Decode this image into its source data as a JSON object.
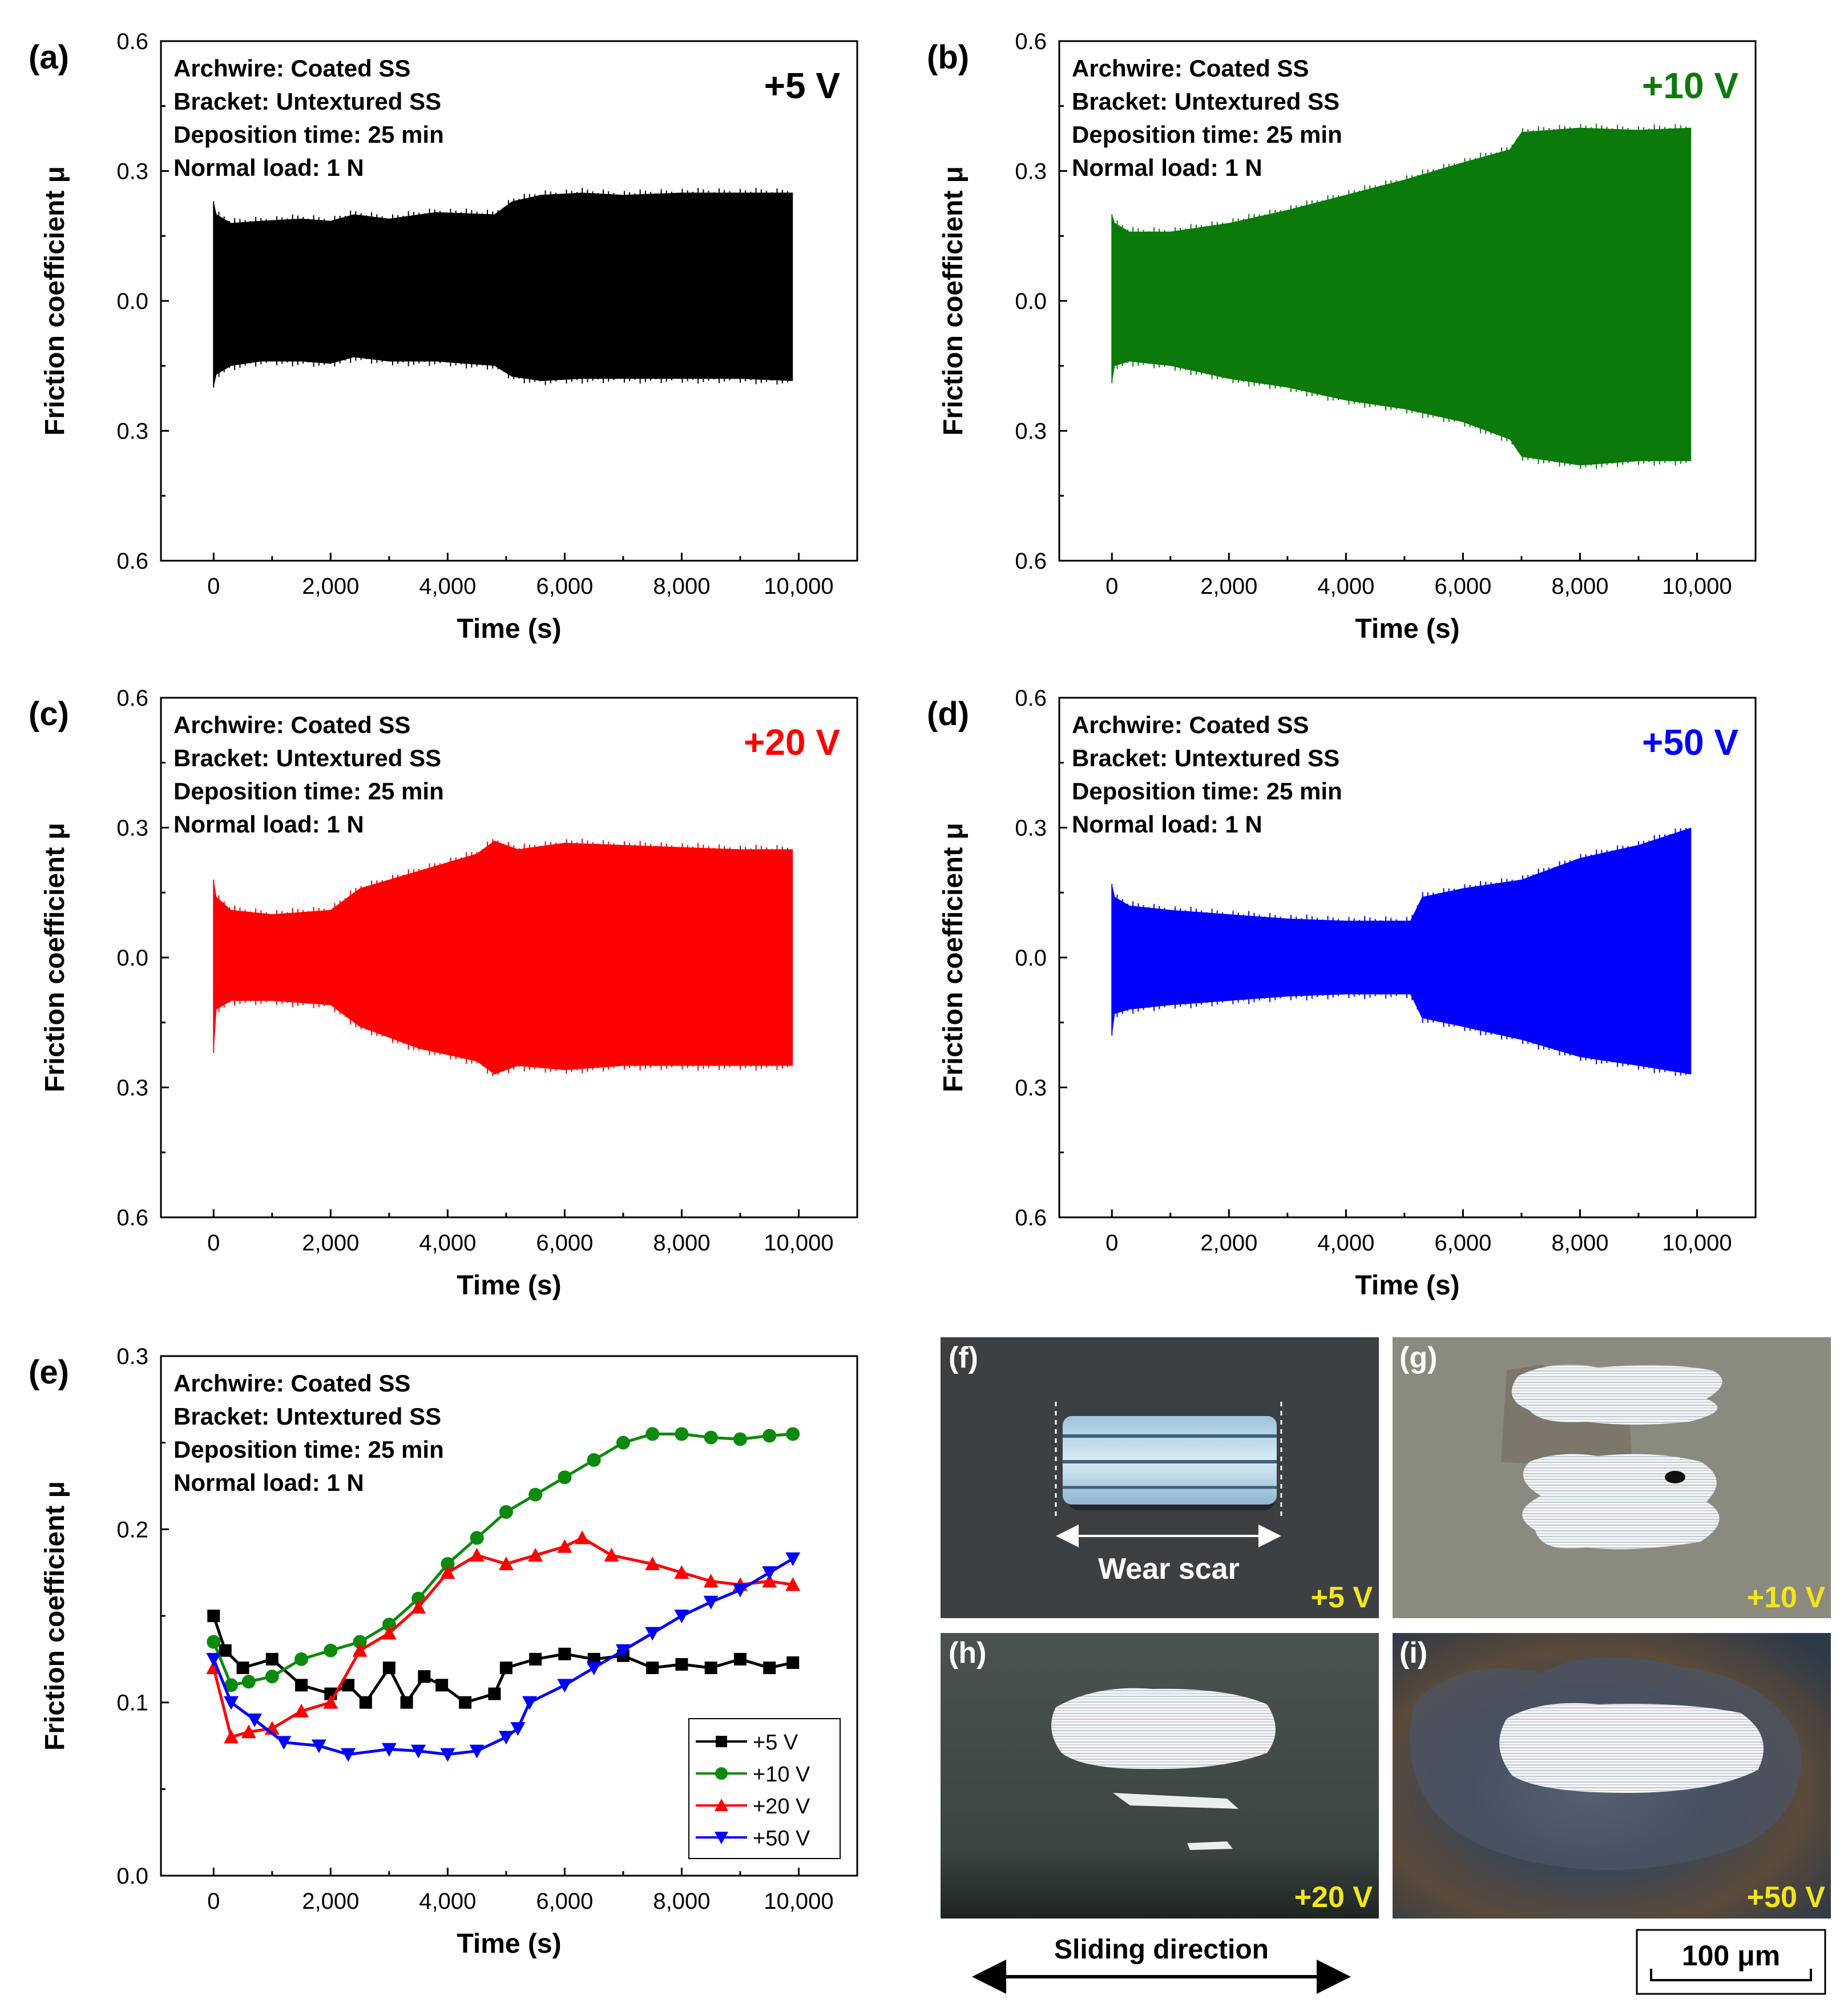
{
  "chart_data": [
    {
      "panel": "(a)",
      "type": "area",
      "tag": "+5 V",
      "color": "#000000",
      "info": [
        "Archwire: Coated SS",
        "Bracket: Untextured SS",
        "Deposition time: 25 min",
        "Normal load: 1 N"
      ],
      "xlabel": "Time (s)",
      "ylabel": "Friction coefficient μ",
      "xlim": [
        -900,
        11000
      ],
      "ylim": [
        -0.6,
        0.6
      ],
      "x_ticks": [
        0,
        2000,
        4000,
        6000,
        8000,
        10000
      ],
      "x_tick_labels": [
        "0",
        "2,000",
        "4,000",
        "6,000",
        "8,000",
        "10,000"
      ],
      "y_ticks": [
        0.6,
        0.3,
        0.0,
        -0.3,
        -0.6
      ],
      "y_tick_labels": [
        "0.6",
        "0.3",
        "0.0",
        "0.3",
        "0.6"
      ],
      "x": [
        0,
        50,
        300,
        800,
        1500,
        2000,
        2400,
        3000,
        3800,
        4800,
        5100,
        5600,
        6300,
        7000,
        8000,
        9000,
        9900
      ],
      "upper": [
        0.23,
        0.2,
        0.18,
        0.185,
        0.19,
        0.185,
        0.2,
        0.19,
        0.205,
        0.2,
        0.23,
        0.245,
        0.25,
        0.245,
        0.25,
        0.25,
        0.25
      ],
      "lower": [
        -0.2,
        -0.17,
        -0.15,
        -0.14,
        -0.14,
        -0.145,
        -0.13,
        -0.14,
        -0.14,
        -0.15,
        -0.175,
        -0.185,
        -0.18,
        -0.18,
        -0.18,
        -0.18,
        -0.185
      ]
    },
    {
      "panel": "(b)",
      "type": "area",
      "tag": "+10 V",
      "color": "#0b7a0b",
      "info": [
        "Archwire: Coated SS",
        "Bracket: Untextured SS",
        "Deposition time: 25 min",
        "Normal load: 1 N"
      ],
      "xlabel": "Time (s)",
      "ylabel": "Friction coefficient μ",
      "xlim": [
        -900,
        11000
      ],
      "ylim": [
        -0.6,
        0.6
      ],
      "x_ticks": [
        0,
        2000,
        4000,
        6000,
        8000,
        10000
      ],
      "x_tick_labels": [
        "0",
        "2,000",
        "4,000",
        "6,000",
        "8,000",
        "10,000"
      ],
      "y_ticks": [
        0.6,
        0.3,
        0.0,
        -0.3,
        -0.6
      ],
      "y_tick_labels": [
        "0.6",
        "0.3",
        "0.0",
        "0.3",
        "0.6"
      ],
      "x": [
        0,
        50,
        300,
        1000,
        2000,
        3000,
        4000,
        5000,
        6000,
        6800,
        7000,
        8000,
        9000,
        9900
      ],
      "upper": [
        0.2,
        0.18,
        0.16,
        0.16,
        0.18,
        0.21,
        0.245,
        0.28,
        0.32,
        0.35,
        0.39,
        0.4,
        0.395,
        0.4
      ],
      "lower": [
        -0.19,
        -0.15,
        -0.14,
        -0.15,
        -0.18,
        -0.2,
        -0.23,
        -0.25,
        -0.28,
        -0.32,
        -0.36,
        -0.38,
        -0.37,
        -0.37
      ]
    },
    {
      "panel": "(c)",
      "type": "area",
      "tag": "+20 V",
      "color": "#ff0000",
      "info": [
        "Archwire: Coated SS",
        "Bracket: Untextured SS",
        "Deposition time: 25 min",
        "Normal load: 1 N"
      ],
      "xlabel": "Time (s)",
      "ylabel": "Friction coefficient μ",
      "xlim": [
        -900,
        11000
      ],
      "ylim": [
        -0.6,
        0.6
      ],
      "x_ticks": [
        0,
        2000,
        4000,
        6000,
        8000,
        10000
      ],
      "x_tick_labels": [
        "0",
        "2,000",
        "4,000",
        "6,000",
        "8,000",
        "10,000"
      ],
      "y_ticks": [
        0.6,
        0.3,
        0.0,
        -0.3,
        -0.6
      ],
      "y_tick_labels": [
        "0.6",
        "0.3",
        "0.0",
        "0.3",
        "0.6"
      ],
      "x": [
        0,
        50,
        300,
        1000,
        2000,
        2500,
        3500,
        4500,
        4800,
        5200,
        6000,
        7000,
        8000,
        9000,
        9900
      ],
      "upper": [
        0.18,
        0.14,
        0.11,
        0.1,
        0.11,
        0.16,
        0.2,
        0.24,
        0.27,
        0.25,
        0.265,
        0.26,
        0.255,
        0.25,
        0.25
      ],
      "lower": [
        -0.22,
        -0.12,
        -0.1,
        -0.1,
        -0.11,
        -0.16,
        -0.21,
        -0.24,
        -0.27,
        -0.25,
        -0.26,
        -0.25,
        -0.25,
        -0.25,
        -0.25
      ]
    },
    {
      "panel": "(d)",
      "type": "area",
      "tag": "+50 V",
      "color": "#0000ff",
      "info": [
        "Archwire: Coated SS",
        "Bracket: Untextured SS",
        "Deposition time: 25 min",
        "Normal load: 1 N"
      ],
      "xlabel": "Time (s)",
      "ylabel": "Friction coefficient μ",
      "xlim": [
        -900,
        11000
      ],
      "ylim": [
        -0.6,
        0.6
      ],
      "x_ticks": [
        0,
        2000,
        4000,
        6000,
        8000,
        10000
      ],
      "x_tick_labels": [
        "0",
        "2,000",
        "4,000",
        "6,000",
        "8,000",
        "10,000"
      ],
      "y_ticks": [
        0.6,
        0.3,
        0.0,
        -0.3,
        -0.6
      ],
      "y_tick_labels": [
        "0.6",
        "0.3",
        "0.0",
        "0.3",
        "0.6"
      ],
      "x": [
        0,
        50,
        300,
        1000,
        2000,
        3000,
        4000,
        5100,
        5300,
        6000,
        7000,
        8000,
        9000,
        9900
      ],
      "upper": [
        0.17,
        0.14,
        0.12,
        0.11,
        0.1,
        0.09,
        0.085,
        0.085,
        0.14,
        0.16,
        0.18,
        0.23,
        0.26,
        0.3
      ],
      "lower": [
        -0.18,
        -0.13,
        -0.12,
        -0.11,
        -0.1,
        -0.09,
        -0.085,
        -0.085,
        -0.14,
        -0.16,
        -0.19,
        -0.23,
        -0.25,
        -0.27
      ]
    },
    {
      "panel": "(e)",
      "type": "line",
      "info": [
        "Archwire: Coated SS",
        "Bracket: Untextured SS",
        "Deposition time: 25 min",
        "Normal load: 1 N"
      ],
      "xlabel": "Time (s)",
      "ylabel": "Friction coefficient μ",
      "xlim": [
        -900,
        11000
      ],
      "ylim": [
        0.0,
        0.3
      ],
      "x_ticks": [
        0,
        2000,
        4000,
        6000,
        8000,
        10000
      ],
      "x_tick_labels": [
        "0",
        "2,000",
        "4,000",
        "6,000",
        "8,000",
        "10,000"
      ],
      "y_ticks": [
        0.0,
        0.1,
        0.2,
        0.3
      ],
      "y_tick_labels": [
        "0.0",
        "0.1",
        "0.2",
        "0.3"
      ],
      "series": [
        {
          "name": "+5 V",
          "color": "#000000",
          "marker": "square",
          "x": [
            0,
            200,
            500,
            1000,
            1500,
            2000,
            2300,
            2600,
            3000,
            3300,
            3600,
            3900,
            4300,
            4800,
            5000,
            5500,
            6000,
            6500,
            7000,
            7500,
            8000,
            8500,
            9000,
            9500,
            9900
          ],
          "y": [
            0.15,
            0.13,
            0.12,
            0.125,
            0.11,
            0.105,
            0.11,
            0.1,
            0.12,
            0.1,
            0.115,
            0.11,
            0.1,
            0.105,
            0.12,
            0.125,
            0.128,
            0.125,
            0.127,
            0.12,
            0.122,
            0.12,
            0.125,
            0.12,
            0.123
          ]
        },
        {
          "name": "+10 V",
          "color": "#0b8a0b",
          "marker": "circle",
          "x": [
            0,
            300,
            600,
            1000,
            1500,
            2000,
            2500,
            3000,
            3500,
            4000,
            4500,
            5000,
            5500,
            6000,
            6500,
            7000,
            7500,
            8000,
            8500,
            9000,
            9500,
            9900
          ],
          "y": [
            0.135,
            0.11,
            0.112,
            0.115,
            0.125,
            0.13,
            0.135,
            0.145,
            0.16,
            0.18,
            0.195,
            0.21,
            0.22,
            0.23,
            0.24,
            0.25,
            0.255,
            0.255,
            0.253,
            0.252,
            0.254,
            0.255
          ]
        },
        {
          "name": "+20 V",
          "color": "#ff0000",
          "marker": "triangle-up",
          "x": [
            0,
            300,
            600,
            1000,
            1500,
            2000,
            2500,
            3000,
            3500,
            4000,
            4500,
            5000,
            5500,
            6000,
            6300,
            6800,
            7500,
            8000,
            8500,
            9000,
            9500,
            9900
          ],
          "y": [
            0.12,
            0.08,
            0.083,
            0.085,
            0.095,
            0.1,
            0.13,
            0.14,
            0.155,
            0.175,
            0.185,
            0.18,
            0.185,
            0.19,
            0.195,
            0.185,
            0.18,
            0.175,
            0.17,
            0.168,
            0.17,
            0.168
          ]
        },
        {
          "name": "+50 V",
          "color": "#0000ff",
          "marker": "triangle-down",
          "x": [
            0,
            300,
            700,
            1200,
            1800,
            2300,
            3000,
            3500,
            4000,
            4500,
            5000,
            5200,
            5400,
            6000,
            6500,
            7000,
            7500,
            8000,
            8500,
            9000,
            9500,
            9900
          ],
          "y": [
            0.125,
            0.1,
            0.09,
            0.077,
            0.075,
            0.07,
            0.073,
            0.072,
            0.07,
            0.072,
            0.08,
            0.085,
            0.1,
            0.11,
            0.12,
            0.13,
            0.14,
            0.15,
            0.158,
            0.165,
            0.175,
            0.183
          ]
        }
      ]
    }
  ],
  "photos": [
    {
      "panel": "(f)",
      "tag": "+5 V",
      "annotation": "Wear scar"
    },
    {
      "panel": "(g)",
      "tag": "+10 V"
    },
    {
      "panel": "(h)",
      "tag": "+20 V"
    },
    {
      "panel": "(i)",
      "tag": "+50 V"
    }
  ],
  "sliding_direction": "Sliding direction",
  "scale_bar": "100 μm",
  "colors": {
    "black": "#000000",
    "green": "#0b7a0b",
    "red": "#ff0000",
    "blue": "#0000ff",
    "tag_yellow": "#f3e51c"
  }
}
